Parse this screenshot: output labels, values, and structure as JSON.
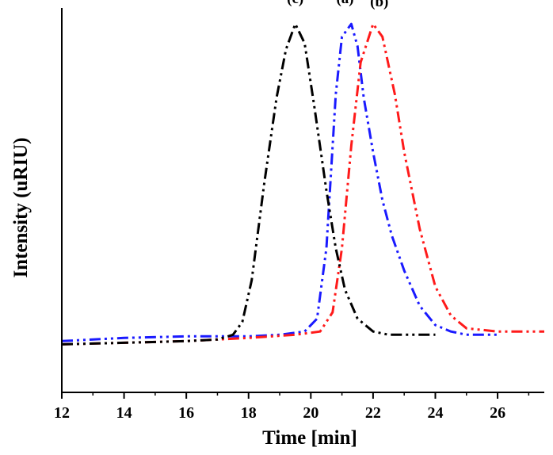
{
  "chart_data": {
    "type": "line",
    "title": "",
    "xlabel": "Time [min]",
    "ylabel": "Intensity (uRIU)",
    "xlim": [
      12,
      27.5
    ],
    "ylim": [
      -0.15,
      1.05
    ],
    "xticks": [
      12,
      14,
      16,
      18,
      20,
      22,
      24,
      26
    ],
    "grid": false,
    "legend": "none",
    "annotations": [
      {
        "text": "(c)",
        "x": 19.5,
        "y": 1.02
      },
      {
        "text": "(a)",
        "x": 21.1,
        "y": 1.02
      },
      {
        "text": "(b)",
        "x": 22.2,
        "y": 1.01
      }
    ],
    "series": [
      {
        "label": "(a)",
        "color": "#1a1aff",
        "dash": "14,5,3,5,3,5",
        "x": [
          12,
          14,
          16,
          17,
          18,
          19,
          19.8,
          20.2,
          20.5,
          20.8,
          21.0,
          21.3,
          21.5,
          21.7,
          22.0,
          22.3,
          22.6,
          23.0,
          23.5,
          24.0,
          24.5,
          25.0,
          26.0
        ],
        "y": [
          0.01,
          0.02,
          0.025,
          0.025,
          0.025,
          0.03,
          0.04,
          0.08,
          0.3,
          0.78,
          0.96,
          1.0,
          0.93,
          0.77,
          0.6,
          0.45,
          0.34,
          0.23,
          0.12,
          0.06,
          0.04,
          0.03,
          0.03
        ]
      },
      {
        "label": "(b)",
        "color": "#ff1a1a",
        "dash": "14,5,3,5,3,5",
        "x": [
          12,
          14,
          16,
          18,
          19.5,
          20.3,
          20.7,
          21.0,
          21.3,
          21.6,
          22.0,
          22.3,
          22.7,
          23.0,
          23.5,
          24.0,
          24.5,
          25.0,
          26.0,
          27.0,
          27.5
        ],
        "y": [
          0.0,
          0.005,
          0.01,
          0.02,
          0.03,
          0.04,
          0.1,
          0.3,
          0.62,
          0.88,
          1.0,
          0.96,
          0.78,
          0.6,
          0.36,
          0.18,
          0.09,
          0.05,
          0.04,
          0.04,
          0.04
        ]
      },
      {
        "label": "(c)",
        "color": "#000000",
        "dash": "14,5,3,5,3,5",
        "x": [
          12,
          14,
          16,
          17,
          17.5,
          17.8,
          18.1,
          18.5,
          18.9,
          19.2,
          19.5,
          19.8,
          20.1,
          20.5,
          20.8,
          21.1,
          21.5,
          22.0,
          22.5,
          23.0,
          24.0
        ],
        "y": [
          0.0,
          0.005,
          0.01,
          0.015,
          0.03,
          0.07,
          0.2,
          0.5,
          0.77,
          0.92,
          1.0,
          0.94,
          0.75,
          0.48,
          0.3,
          0.17,
          0.08,
          0.04,
          0.03,
          0.03,
          0.03
        ]
      }
    ]
  }
}
